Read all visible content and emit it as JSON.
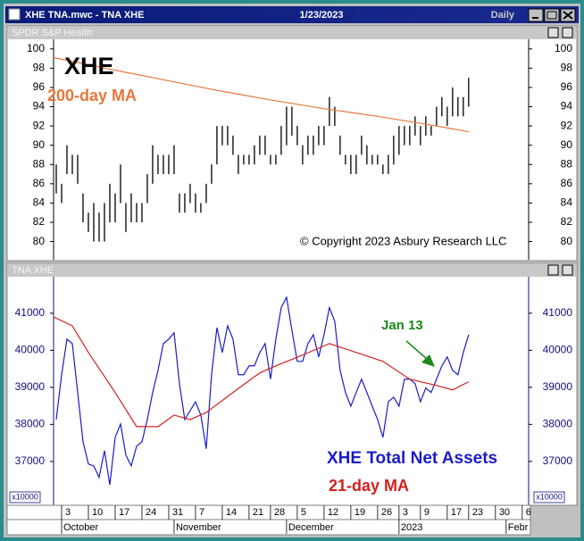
{
  "window": {
    "title": "XHE TNA.mwc - TNA XHE",
    "date": "1/23/2023",
    "interval": "Daily"
  },
  "chart_data": [
    {
      "type": "range",
      "title": "SPDR S&P Health",
      "annotations": {
        "symbol": "XHE",
        "ma_label": "200-day MA",
        "copyright": "© Copyright 2023 Asbury Research LLC"
      },
      "high": [
        88,
        86,
        90,
        89,
        89,
        85,
        83,
        84,
        83,
        84,
        86,
        85,
        88,
        84,
        85,
        84,
        84,
        87,
        90,
        89,
        89,
        89,
        90,
        85,
        85,
        86,
        85,
        84,
        86,
        88,
        92,
        92,
        92,
        91,
        89,
        89,
        89,
        90,
        91,
        91,
        89,
        89,
        92,
        94,
        94,
        92,
        90,
        91,
        91,
        92,
        92,
        95,
        94,
        91,
        89,
        89,
        89,
        91,
        90,
        89,
        89,
        88,
        89,
        91,
        92,
        92,
        92,
        93,
        92,
        93,
        92,
        94,
        95,
        94,
        96,
        95,
        95,
        97
      ],
      "low": [
        85,
        84,
        87,
        87,
        86,
        82,
        81,
        80,
        80,
        80,
        82,
        82,
        84,
        81,
        82,
        82,
        82,
        84,
        86,
        87,
        87,
        87,
        87,
        83,
        83,
        84,
        83,
        83,
        84,
        86,
        88,
        90,
        90,
        89,
        87,
        88,
        88,
        88,
        89,
        89,
        88,
        88,
        89,
        90,
        91,
        90,
        88,
        89,
        89,
        90,
        90,
        92,
        92,
        89,
        88,
        87,
        87,
        89,
        88,
        88,
        88,
        87,
        87,
        88,
        89,
        90,
        90,
        91,
        90,
        91,
        91,
        92,
        93,
        92,
        93,
        93,
        93,
        94
      ],
      "color": "#000000",
      "ma": {
        "x": [
          -0.5,
          10,
          20,
          30,
          40,
          50,
          60,
          70,
          77
        ],
        "values": [
          99.1,
          97.9,
          96.8,
          95.7,
          94.7,
          93.8,
          93.0,
          92.1,
          91.4
        ],
        "color": "#e8763a"
      },
      "xlim": [
        -0.5,
        88.2
      ],
      "ylim": [
        78.2,
        101
      ],
      "yticks": [
        80,
        82,
        84,
        86,
        88,
        90,
        92,
        94,
        96,
        98,
        100
      ]
    },
    {
      "type": "line",
      "title": "TNA XHE",
      "unit": "x10000",
      "annotations": {
        "date": "Jan 13",
        "series_label": "XHE Total Net Assets",
        "ma_label": "21-day MA"
      },
      "series": [
        {
          "color": "#1c1cc8",
          "values": [
            38130,
            39340,
            40300,
            40180,
            38860,
            37530,
            36930,
            36880,
            36570,
            37290,
            36370,
            37650,
            38010,
            37170,
            36880,
            37410,
            37530,
            38130,
            38860,
            39460,
            40180,
            40300,
            40470,
            39100,
            38130,
            38370,
            38610,
            38250,
            37340,
            39340,
            40610,
            39940,
            40660,
            40300,
            39340,
            39340,
            39580,
            39580,
            39940,
            40180,
            39220,
            40300,
            41150,
            41430,
            40540,
            39700,
            39700,
            40180,
            40420,
            39820,
            40420,
            41150,
            40780,
            39460,
            38860,
            38490,
            38860,
            39220,
            38860,
            38490,
            38130,
            37650,
            38610,
            38730,
            38490,
            39220,
            39220,
            39100,
            38610,
            38980,
            38860,
            39220,
            39580,
            39820,
            39460,
            39340,
            39940,
            40420
          ]
        },
        {
          "color": "#d42020",
          "x": [
            -0.5,
            3,
            6,
            11,
            15,
            19,
            22,
            25,
            28,
            33,
            38,
            41,
            46,
            51,
            56,
            61,
            66,
            71,
            74,
            77
          ],
          "values": [
            40900,
            40660,
            39940,
            38860,
            37940,
            37940,
            38250,
            38130,
            38320,
            38860,
            39390,
            39580,
            39870,
            40180,
            39940,
            39700,
            39220,
            39050,
            38930,
            39150
          ]
        }
      ],
      "xlim": [
        -0.5,
        88.2
      ],
      "ylim": [
        35840,
        41960
      ],
      "yticks": [
        37000,
        38000,
        39000,
        40000,
        41000
      ],
      "xticks": [
        {
          "value": 1,
          "label": "3"
        },
        {
          "value": 6,
          "label": "10"
        },
        {
          "value": 11,
          "label": "17"
        },
        {
          "value": 16,
          "label": "24"
        },
        {
          "value": 21,
          "label": "31"
        },
        {
          "value": 26,
          "label": "7"
        },
        {
          "value": 31,
          "label": "14"
        },
        {
          "value": 36,
          "label": "21"
        },
        {
          "value": 40,
          "label": "28"
        },
        {
          "value": 45,
          "label": "5"
        },
        {
          "value": 50,
          "label": "12"
        },
        {
          "value": 55,
          "label": "19"
        },
        {
          "value": 60,
          "label": "26"
        },
        {
          "value": 64,
          "label": "3"
        },
        {
          "value": 68,
          "label": "9"
        },
        {
          "value": 73,
          "label": "17"
        },
        {
          "value": 77,
          "label": "23"
        },
        {
          "value": 82,
          "label": "30"
        },
        {
          "value": 87,
          "label": "6"
        }
      ],
      "month_labels": [
        {
          "value": 1,
          "label": "October"
        },
        {
          "value": 22,
          "label": "November"
        },
        {
          "value": 43,
          "label": "December"
        },
        {
          "value": 64,
          "label": "2023"
        },
        {
          "value": 84,
          "label": "Febr"
        }
      ]
    }
  ]
}
